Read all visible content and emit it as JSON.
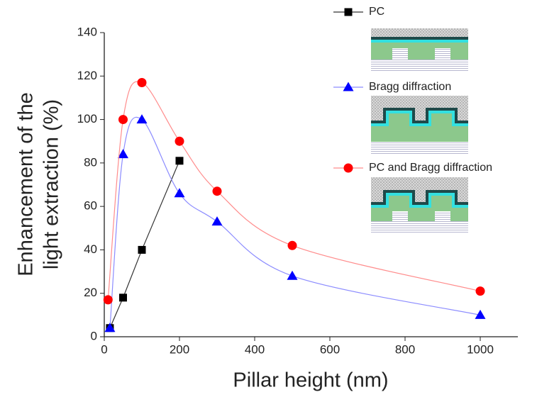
{
  "chart_data": {
    "type": "line",
    "xlabel": "Pillar height (nm)",
    "ylabel": [
      "Enhancement of the",
      "light extraction (%)"
    ],
    "xlim": [
      0,
      1100
    ],
    "xticks": [
      0,
      200,
      400,
      600,
      800,
      1000
    ],
    "ylim": [
      0,
      140
    ],
    "yticks": [
      0,
      20,
      40,
      60,
      80,
      100,
      120,
      140
    ],
    "series": [
      {
        "name": "PC",
        "color": "#000000",
        "line_color": "#333333",
        "marker": "square",
        "smooth": false,
        "x": [
          15,
          50,
          100,
          200
        ],
        "values": [
          4,
          18,
          40,
          81
        ]
      },
      {
        "name": "Bragg diffraction",
        "color": "#0000ff",
        "line_color": "#8c8cff",
        "marker": "triangle",
        "smooth": true,
        "x": [
          15,
          50,
          100,
          200,
          300,
          500,
          1000
        ],
        "values": [
          4,
          84,
          100,
          66,
          53,
          28,
          10
        ]
      },
      {
        "name": "PC and Bragg diffraction",
        "color": "#ff0000",
        "line_color": "#ff8c8c",
        "marker": "circle",
        "smooth": true,
        "x": [
          10,
          50,
          100,
          200,
          300,
          500,
          1000
        ],
        "values": [
          17,
          100,
          117,
          90,
          67,
          42,
          21
        ]
      }
    ]
  }
}
